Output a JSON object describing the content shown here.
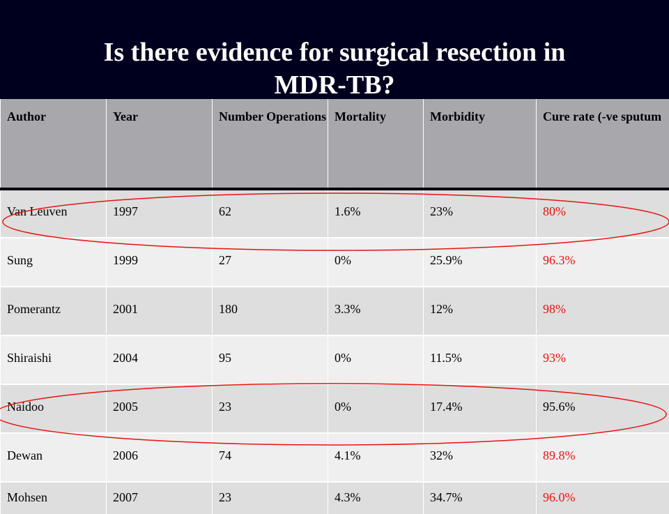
{
  "title": {
    "line1": "Is there evidence for surgical resection in",
    "line2": "MDR-TB?"
  },
  "table": {
    "headers": [
      "Author",
      "Year",
      "Number Operations",
      "Mortality",
      "Morbidity",
      "Cure rate (-ve sputum"
    ],
    "rows": [
      {
        "author": "Van Leuven",
        "year": "1997",
        "operations": "62",
        "mortality": "1.6%",
        "morbidity": "23%",
        "cure": "80%",
        "cure_highlighted": true
      },
      {
        "author": "Sung",
        "year": "1999",
        "operations": "27",
        "mortality": "0%",
        "morbidity": "25.9%",
        "cure": "96.3%",
        "cure_highlighted": true
      },
      {
        "author": "Pomerantz",
        "year": "2001",
        "operations": "180",
        "mortality": "3.3%",
        "morbidity": "12%",
        "cure": "98%",
        "cure_highlighted": true
      },
      {
        "author": "Shiraishi",
        "year": "2004",
        "operations": "95",
        "mortality": "0%",
        "morbidity": "11.5%",
        "cure": "93%",
        "cure_highlighted": true
      },
      {
        "author": "Naidoo",
        "year": "2005",
        "operations": "23",
        "mortality": "0%",
        "morbidity": "17.4%",
        "cure": "95.6%",
        "cure_highlighted": false
      },
      {
        "author": "Dewan",
        "year": "2006",
        "operations": "74",
        "mortality": "4.1%",
        "morbidity": "32%",
        "cure": "89.8%",
        "cure_highlighted": true
      },
      {
        "author": "Mohsen",
        "year": "2007",
        "operations": "23",
        "mortality": "4.3%",
        "morbidity": "34.7%",
        "cure": "96.0%",
        "cure_highlighted": true
      }
    ]
  },
  "colors": {
    "header_background": "#00001e",
    "title_text": "#ffffff",
    "table_header_background": "#a8a8ac",
    "row_shade_dark": "#dededf",
    "row_shade_light": "#efeff0",
    "cure_highlight_text": "#e8120c",
    "annotation_ellipse": "#e8120c"
  },
  "annotations": {
    "circled_rows": [
      "Van Leuven",
      "Naidoo"
    ]
  }
}
